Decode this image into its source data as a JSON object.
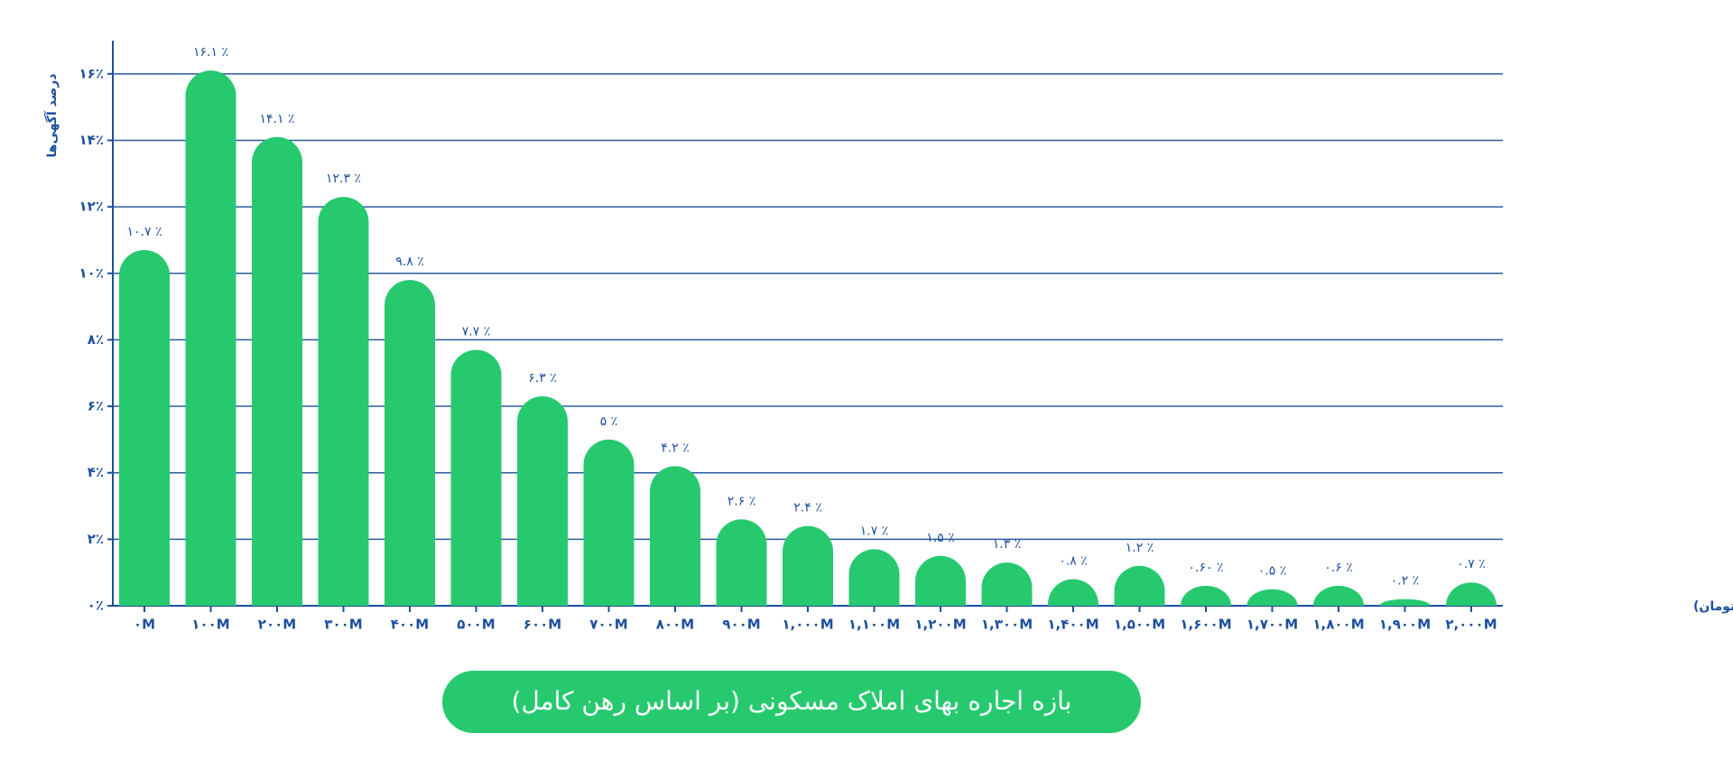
{
  "chart_data": {
    "type": "bar",
    "title": "بازه اجاره بهای املاک مسکونی (بر اساس رهن کامل)",
    "x_label": "قیمت رهن کامل ( میلیون تومان)",
    "y_label": "درصد آگهی‌ها",
    "categories": [
      "۰M",
      "۱۰۰M",
      "۲۰۰M",
      "۳۰۰M",
      "۴۰۰M",
      "۵۰۰M",
      "۶۰۰M",
      "۷۰۰M",
      "۸۰۰M",
      "۹۰۰M",
      "۱,۰۰۰M",
      "۱,۱۰۰M",
      "۱,۲۰۰M",
      "۱,۳۰۰M",
      "۱,۴۰۰M",
      "۱,۵۰۰M",
      "۱,۶۰۰M",
      "۱,۷۰۰M",
      "۱,۸۰۰M",
      "۱,۹۰۰M",
      "۲,۰۰۰M"
    ],
    "values": [
      10.7,
      16.1,
      14.1,
      12.3,
      9.8,
      7.7,
      6.3,
      5,
      4.2,
      2.6,
      2.4,
      1.7,
      1.5,
      1.3,
      0.8,
      1.2,
      0.6,
      0.5,
      0.6,
      0.2,
      0.7
    ],
    "value_labels": [
      "۱۰.۷ ٪",
      "۱۶.۱ ٪",
      "۱۴.۱ ٪",
      "۱۲.۳ ٪",
      "۹.۸ ٪",
      "۷.۷ ٪",
      "۶.۳ ٪",
      "۵ ٪",
      "۴.۲ ٪",
      "۲.۶ ٪",
      "۲.۴ ٪",
      "۱.۷ ٪",
      "۱.۵ ٪",
      "۱.۳ ٪",
      "۰.۸ ٪",
      "۱.۲ ٪",
      "۰.۶۰ ٪",
      "۰.۵ ٪",
      "۰.۶ ٪",
      "۰.۲ ٪",
      "۰.۷ ٪"
    ],
    "color": "#27c96f",
    "ylim": [
      0,
      17
    ],
    "yticks": [
      {
        "value": 0,
        "label": "۰٪"
      },
      {
        "value": 2,
        "label": "۲٪"
      },
      {
        "value": 4,
        "label": "۴٪"
      },
      {
        "value": 6,
        "label": "۶٪"
      },
      {
        "value": 8,
        "label": "۸٪"
      },
      {
        "value": 10,
        "label": "۱۰٪"
      },
      {
        "value": 12,
        "label": "۱۲٪"
      },
      {
        "value": 14,
        "label": "۱۴٪"
      },
      {
        "value": 16,
        "label": "۱۶٪"
      }
    ],
    "grid": true
  }
}
